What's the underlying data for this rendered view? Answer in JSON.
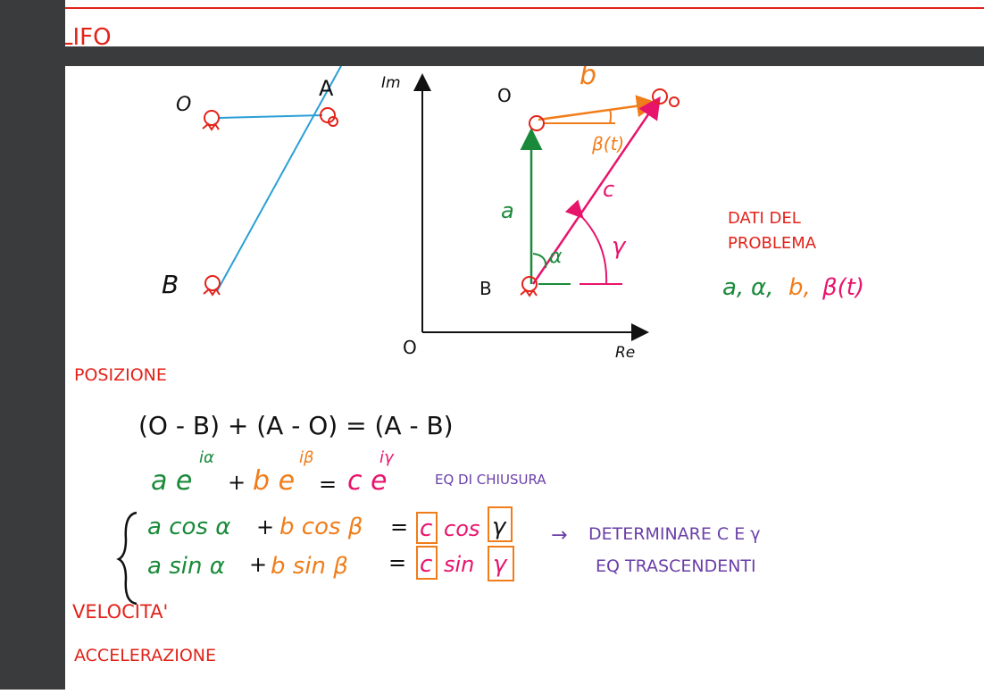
{
  "colors": {
    "background": "#ffffff",
    "chrome": "#3a3b3d",
    "red": "#e2231a",
    "blue": "#2a9fd6",
    "green": "#1a8a3a",
    "orange": "#f07d1a",
    "magenta": "#e8146c",
    "purple": "#6a3fa8",
    "black": "#111111"
  },
  "previous_page": {
    "heading_fragment": "LIFO"
  },
  "left_sketch": {
    "label_O": "O",
    "label_A": "A",
    "label_B": "B"
  },
  "complex_plane": {
    "imag_axis_label": "Im",
    "real_axis_label": "Re",
    "origin_label": "O",
    "label_O": "O",
    "label_A": "A",
    "label_B": "B",
    "vector_a": "a",
    "vector_b": "b",
    "vector_c": "c",
    "angle_alpha": "α",
    "angle_beta": "β(t)",
    "angle_gamma": "γ"
  },
  "problem_data": {
    "title_line1": "DATI DEL",
    "title_line2": "PROBLEMA",
    "a": "a,",
    "alpha": "α,",
    "b": "b,",
    "beta": "β(t)"
  },
  "sections": {
    "position": "POSIZIONE",
    "velocity": "VELOCITA'",
    "acceleration": "ACCELERAZIONE"
  },
  "equations": {
    "vector_closure": "(O - B) + (A - O) = (A - B)",
    "exp_a": "a e",
    "exp_a_sup": "iα",
    "plus1": "+",
    "exp_b": "b e",
    "exp_b_sup": "iβ",
    "equals1": "=",
    "exp_c": "c e",
    "exp_c_sup": "iγ",
    "closure_label": "EQ DI CHIUSURA",
    "row1_a": "a cos α",
    "row1_plus": "+",
    "row1_b": "b cos β",
    "row1_eq": "=",
    "row1_c": "c",
    "row1_fn": "cos",
    "row1_gamma": "γ",
    "row2_a": "a sin α",
    "row2_plus": "+",
    "row2_b": "b sin β",
    "row2_eq": "=",
    "row2_c": "c",
    "row2_fn": "sin",
    "row2_gamma": "γ",
    "arrow": "→",
    "note_line1": "DETERMINARE C E γ",
    "note_line2": "EQ TRASCENDENTI"
  }
}
